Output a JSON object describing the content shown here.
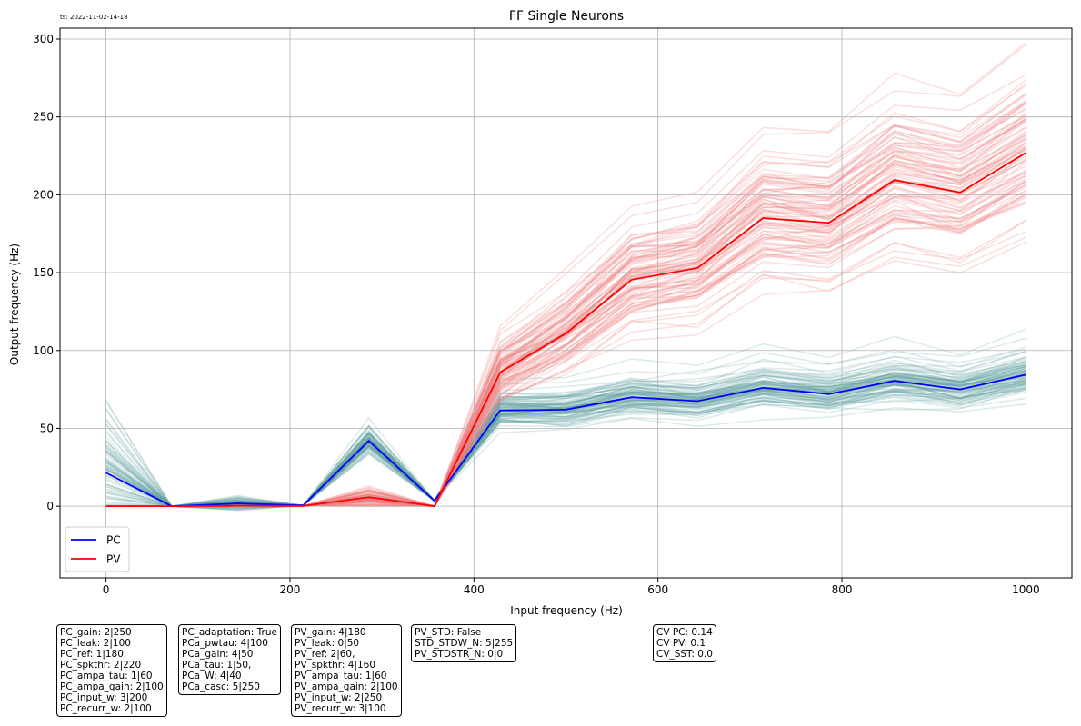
{
  "timestamp": "ts: 2022-11-02-14-18",
  "colors": {
    "pc_mean": "#0000ff",
    "pv_mean": "#ff0000",
    "pc_traces": "#5f9ea0",
    "pv_traces": "#f08080",
    "grid": "#b0b0b0"
  },
  "chart_data": {
    "type": "line",
    "title": "FF Single Neurons",
    "xlabel": "Input frequency (Hz)",
    "ylabel": "Output frequency (Hz)",
    "xlim": [
      -50,
      1050
    ],
    "ylim": [
      -46,
      307
    ],
    "xticks": [
      0,
      200,
      400,
      600,
      800,
      1000
    ],
    "yticks": [
      0,
      50,
      100,
      150,
      200,
      250,
      300
    ],
    "grid": true,
    "legend_position": "lower-left",
    "x": [
      0,
      71.4,
      142.9,
      214.3,
      285.7,
      357.1,
      428.6,
      500,
      571.4,
      642.9,
      714.3,
      785.7,
      857.1,
      928.6,
      1000
    ],
    "series": [
      {
        "name": "PC",
        "values": [
          21.5,
          0,
          1.8,
          0.5,
          42,
          3.5,
          61.5,
          62,
          70,
          67.5,
          76,
          72,
          80.5,
          75,
          84.5
        ]
      },
      {
        "name": "PV",
        "values": [
          0,
          0,
          0.3,
          0.2,
          5.8,
          0,
          86,
          111,
          145.5,
          153,
          185,
          182,
          209.5,
          201.5,
          227
        ]
      }
    ]
  },
  "info_boxes": [
    {
      "lines": [
        "PC_gain: 2|250",
        "PC_leak: 2|100",
        "PC_ref: 1|180,",
        "PC_spkthr: 2|220",
        "PC_ampa_tau: 1|60",
        "PC_ampa_gain: 2|100",
        "PC_input_w: 3|200",
        "PC_recurr_w: 2|100"
      ]
    },
    {
      "lines": [
        "PC_adaptation: True",
        "PCa_pwtau: 4|100",
        "PCa_gain: 4|50",
        "PCa_tau: 1|50,",
        "PCa_W: 4|40",
        "PCa_casc: 5|250"
      ]
    },
    {
      "lines": [
        "PV_gain: 4|180",
        "PV_leak: 0|50",
        "PV_ref: 2|60,",
        "PV_spkthr: 4|160",
        "PV_ampa_tau: 1|60",
        "PV_ampa_gain: 2|100",
        "PV_input_w: 2|250",
        "PV_recurr_w: 3|100"
      ]
    },
    {
      "lines": [
        "PV_STD: False",
        "STD_STDW_N: 5|255",
        "PV_STDSTR_N: 0|0"
      ]
    },
    {
      "lines": [
        "CV PC: 0.14",
        "CV PV: 0.1",
        "CV_SST: 0.0"
      ]
    }
  ]
}
